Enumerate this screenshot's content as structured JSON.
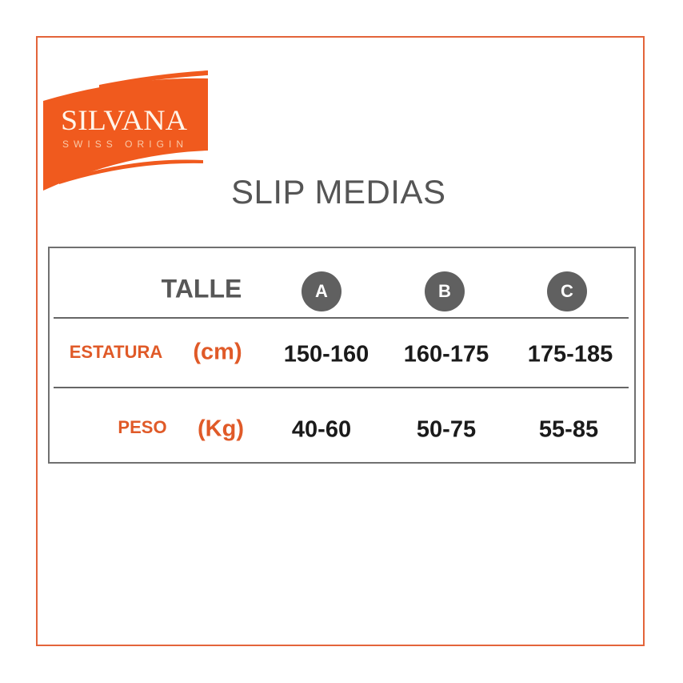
{
  "brand": {
    "name": "SILVANA",
    "tagline": "SWISS ORIGIN",
    "color": "#f05a1e"
  },
  "title": "SLIP MEDIAS",
  "table": {
    "header_label": "TALLE",
    "sizes": [
      "A",
      "B",
      "C"
    ],
    "rows": [
      {
        "label": "ESTATURA",
        "unit": "(cm)",
        "values": [
          "150-160",
          "160-175",
          "175-185"
        ]
      },
      {
        "label": "PESO",
        "unit": "(Kg)",
        "values": [
          "40-60",
          "50-75",
          "55-85"
        ]
      }
    ]
  },
  "colors": {
    "accent": "#e3643a",
    "label": "#e05a28",
    "circle": "#606060"
  }
}
